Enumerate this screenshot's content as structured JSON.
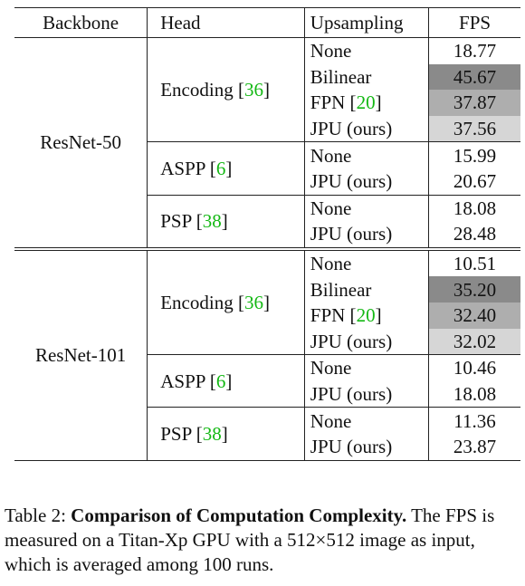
{
  "columns": [
    "Backbone",
    "Head",
    "Upsampling",
    "FPS"
  ],
  "sections": [
    {
      "backbone": "ResNet-50",
      "groups": [
        {
          "head": "Encoding [",
          "ref": "36",
          "rows": [
            {
              "up": "None",
              "fps": "18.77",
              "shade": ""
            },
            {
              "up": "Bilinear",
              "fps": "45.67",
              "shade": "#8a8a8a"
            },
            {
              "up": "FPN [",
              "upref": "20",
              "fps": "37.87",
              "shade": "#aeaeae"
            },
            {
              "up": "JPU (ours)",
              "fps": "37.56",
              "shade": "#d6d6d6"
            }
          ]
        },
        {
          "head": "ASPP [",
          "ref": "6",
          "rows": [
            {
              "up": "None",
              "fps": "15.99",
              "shade": ""
            },
            {
              "up": "JPU (ours)",
              "fps": "20.67",
              "shade": ""
            }
          ]
        },
        {
          "head": "PSP [",
          "ref": "38",
          "rows": [
            {
              "up": "None",
              "fps": "18.08",
              "shade": ""
            },
            {
              "up": "JPU (ours)",
              "fps": "28.48",
              "shade": ""
            }
          ]
        }
      ]
    },
    {
      "backbone": "ResNet-101",
      "groups": [
        {
          "head": "Encoding [",
          "ref": "36",
          "rows": [
            {
              "up": "None",
              "fps": "10.51",
              "shade": ""
            },
            {
              "up": "Bilinear",
              "fps": "35.20",
              "shade": "#8a8a8a"
            },
            {
              "up": "FPN [",
              "upref": "20",
              "fps": "32.40",
              "shade": "#aeaeae"
            },
            {
              "up": "JPU (ours)",
              "fps": "32.02",
              "shade": "#d6d6d6"
            }
          ]
        },
        {
          "head": "ASPP [",
          "ref": "6",
          "rows": [
            {
              "up": "None",
              "fps": "10.46",
              "shade": ""
            },
            {
              "up": "JPU (ours)",
              "fps": "18.08",
              "shade": ""
            }
          ]
        },
        {
          "head": "PSP [",
          "ref": "38",
          "rows": [
            {
              "up": "None",
              "fps": "11.36",
              "shade": ""
            },
            {
              "up": "JPU (ours)",
              "fps": "23.87",
              "shade": ""
            }
          ]
        }
      ]
    }
  ],
  "caption": {
    "label": "Table 2: ",
    "title": "Comparison of Computation Complexity.",
    "text": " The FPS is measured on a Titan-Xp GPU with a 512×512 image as input, which is averaged among 100 runs."
  }
}
